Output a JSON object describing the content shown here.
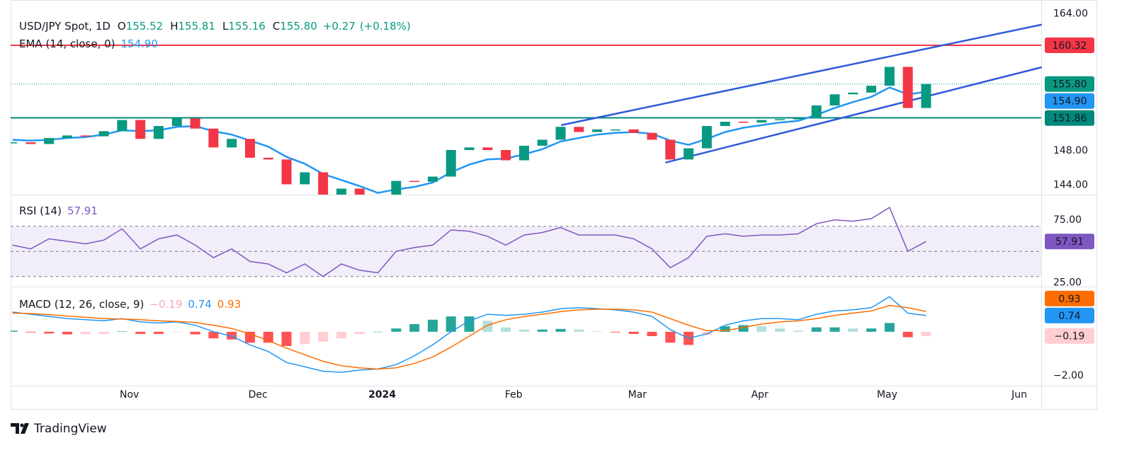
{
  "chart_data": [
    {
      "type": "candlestick",
      "title": "USD/JPY Spot, 1D",
      "readout": [
        {
          "label": "O",
          "value": "155.52"
        },
        {
          "label": "H",
          "value": "155.81"
        },
        {
          "label": "L",
          "value": "155.16"
        },
        {
          "label": "C",
          "value": "155.80"
        }
      ],
      "change": "+0.27",
      "change_pct": "(+0.18%)",
      "readout_color": "#089981",
      "x": [
        0,
        3,
        6,
        9,
        12,
        15,
        18,
        21,
        24,
        27,
        30,
        33,
        36,
        39,
        42,
        45,
        48,
        51,
        54,
        57,
        60,
        63,
        66,
        69,
        72,
        75,
        78,
        81,
        84,
        87,
        90,
        93,
        96,
        99,
        102,
        105,
        108,
        111,
        114,
        117,
        120,
        123,
        126,
        129,
        132,
        135,
        138,
        141,
        144,
        147,
        150
      ],
      "close": [
        149.0,
        148.8,
        149.5,
        149.8,
        149.7,
        150.3,
        151.6,
        149.4,
        150.9,
        151.8,
        150.6,
        148.4,
        149.4,
        147.2,
        147.0,
        144.1,
        145.5,
        142.2,
        143.6,
        142.4,
        141.2,
        144.5,
        144.4,
        145.0,
        148.1,
        148.4,
        148.1,
        146.9,
        148.6,
        149.3,
        150.8,
        150.2,
        150.5,
        150.5,
        150.1,
        149.3,
        147.0,
        148.3,
        150.9,
        151.4,
        151.3,
        151.6,
        151.7,
        151.8,
        153.3,
        154.6,
        154.8,
        155.6,
        157.8,
        153.0,
        155.8
      ],
      "up_color": "#089981",
      "down_color": "#f23645",
      "ema": {
        "title": "EMA (14, close, 0)",
        "color": "#2196f3",
        "values": [
          149.3,
          149.2,
          149.3,
          149.5,
          149.6,
          149.9,
          150.4,
          150.3,
          150.4,
          150.8,
          150.9,
          150.3,
          149.9,
          149.2,
          148.5,
          147.3,
          146.5,
          145.3,
          144.6,
          143.9,
          143.1,
          143.5,
          143.8,
          144.3,
          145.5,
          146.4,
          147.0,
          147.1,
          147.6,
          148.2,
          149.1,
          149.5,
          149.9,
          150.1,
          150.2,
          150.0,
          149.2,
          148.7,
          149.4,
          150.2,
          150.7,
          151.0,
          151.3,
          151.5,
          152.2,
          153.0,
          153.7,
          154.3,
          155.4,
          154.6,
          154.9
        ]
      },
      "trendlines": [
        {
          "x": [
            90.1,
            169
          ],
          "y": [
            151.0,
            162.73
          ],
          "color": "#2f5ad9"
        },
        {
          "x": [
            107.2,
            169
          ],
          "y": [
            146.63,
            157.76
          ],
          "color": "#2f5ad9"
        }
      ],
      "levels": [
        {
          "value": 160.32,
          "label": "160.32",
          "color": "#f23645",
          "line": "solid"
        },
        {
          "value": 155.8,
          "label": "155.80",
          "color": "#089981",
          "line": "dotted"
        },
        {
          "value": 154.9,
          "label": "154.90",
          "color": "#2196f3",
          "line": "none"
        },
        {
          "value": 151.86,
          "label": "151.86",
          "color": "#00897b",
          "line": "solid"
        }
      ],
      "xlim": [
        -0.3,
        168.9
      ],
      "xticks": [
        {
          "value": 19.2,
          "label": "Nov"
        },
        {
          "value": 40.3,
          "label": "Dec"
        },
        {
          "value": 60.7,
          "label": "2024",
          "bold": true
        },
        {
          "value": 82.3,
          "label": "Feb"
        },
        {
          "value": 102.6,
          "label": "Mar"
        },
        {
          "value": 122.7,
          "label": "Apr"
        },
        {
          "value": 143.6,
          "label": "May"
        },
        {
          "value": 165.3,
          "label": "Jun"
        }
      ],
      "ylim": [
        142.9,
        165.6
      ],
      "yticks": [
        {
          "value": 164,
          "label": "164.00"
        },
        {
          "value": 148,
          "label": "148.00"
        },
        {
          "value": 144,
          "label": "144.00"
        }
      ]
    },
    {
      "type": "line",
      "title": "RSI (14)",
      "color": "#7e57c2",
      "series": [
        {
          "values": [
            55,
            52,
            60,
            58,
            56,
            59,
            68,
            52,
            60,
            63,
            55,
            45,
            52,
            42,
            40,
            33,
            40,
            30,
            40,
            35,
            33,
            50,
            53,
            55,
            67,
            66,
            62,
            55,
            63,
            65,
            69,
            63,
            63,
            63,
            60,
            52,
            37,
            45,
            62,
            64,
            62,
            63,
            63,
            64,
            72,
            75,
            74,
            76,
            85,
            50,
            57.91
          ]
        }
      ],
      "band": [
        30,
        70
      ],
      "hlines": [
        70,
        50,
        30
      ],
      "ylim": [
        22,
        94.6
      ],
      "yticks": [
        {
          "value": 75,
          "label": "75.00"
        },
        {
          "value": 25,
          "label": "25.00"
        }
      ]
    },
    {
      "type": "macd",
      "title": "MACD (12, 26, close, 9)",
      "histogram": {
        "last_label": "−0.19",
        "box_color": "#ffcdd2",
        "text_color": "#131722",
        "label_color": "#f7a9b2",
        "colors": {
          "up_rising": "#26a69a",
          "up_falling": "#b2dfdb",
          "down_falling": "#ff5252",
          "down_rising": "#ffcdd2"
        },
        "values": [
          0.05,
          -0.03,
          -0.08,
          -0.12,
          -0.11,
          -0.1,
          0.02,
          -0.1,
          -0.1,
          -0.02,
          -0.12,
          -0.3,
          -0.35,
          -0.5,
          -0.5,
          -0.65,
          -0.55,
          -0.45,
          -0.3,
          -0.1,
          0,
          0.15,
          0.35,
          0.55,
          0.7,
          0.7,
          0.5,
          0.2,
          0.1,
          0.1,
          0.13,
          0.1,
          0.02,
          -0.03,
          -0.1,
          -0.2,
          -0.5,
          -0.6,
          -0.15,
          0.25,
          0.3,
          0.25,
          0.15,
          0.05,
          0.2,
          0.2,
          0.15,
          0.15,
          0.4,
          -0.25,
          -0.19
        ]
      },
      "macd": {
        "last_label": "0.74",
        "color": "#2196f3",
        "values": [
          0.9,
          0.8,
          0.7,
          0.6,
          0.55,
          0.5,
          0.6,
          0.45,
          0.4,
          0.45,
          0.3,
          0,
          -0.2,
          -0.6,
          -0.9,
          -1.4,
          -1.6,
          -1.8,
          -1.85,
          -1.75,
          -1.7,
          -1.5,
          -1.1,
          -0.6,
          0,
          0.5,
          0.8,
          0.75,
          0.8,
          0.9,
          1.05,
          1.1,
          1.05,
          1,
          0.9,
          0.7,
          0.1,
          -0.3,
          -0.1,
          0.3,
          0.5,
          0.6,
          0.6,
          0.55,
          0.8,
          0.95,
          1,
          1.1,
          1.6,
          0.85,
          0.74
        ]
      },
      "signal": {
        "last_label": "0.93",
        "color": "#ff6d00",
        "values": [
          0.85,
          0.83,
          0.78,
          0.72,
          0.66,
          0.6,
          0.58,
          0.55,
          0.5,
          0.47,
          0.42,
          0.3,
          0.15,
          -0.1,
          -0.4,
          -0.75,
          -1.05,
          -1.35,
          -1.55,
          -1.65,
          -1.7,
          -1.65,
          -1.45,
          -1.15,
          -0.7,
          -0.2,
          0.3,
          0.55,
          0.7,
          0.8,
          0.92,
          1,
          1.03,
          1.03,
          1,
          0.9,
          0.6,
          0.3,
          0.05,
          0.05,
          0.2,
          0.35,
          0.45,
          0.5,
          0.6,
          0.75,
          0.85,
          0.95,
          1.2,
          1.1,
          0.93
        ]
      },
      "ylim": [
        -2.46,
        2.03
      ],
      "yticks": [
        {
          "value": -2,
          "label": "−2.00"
        }
      ]
    }
  ],
  "logo": "TradingView"
}
